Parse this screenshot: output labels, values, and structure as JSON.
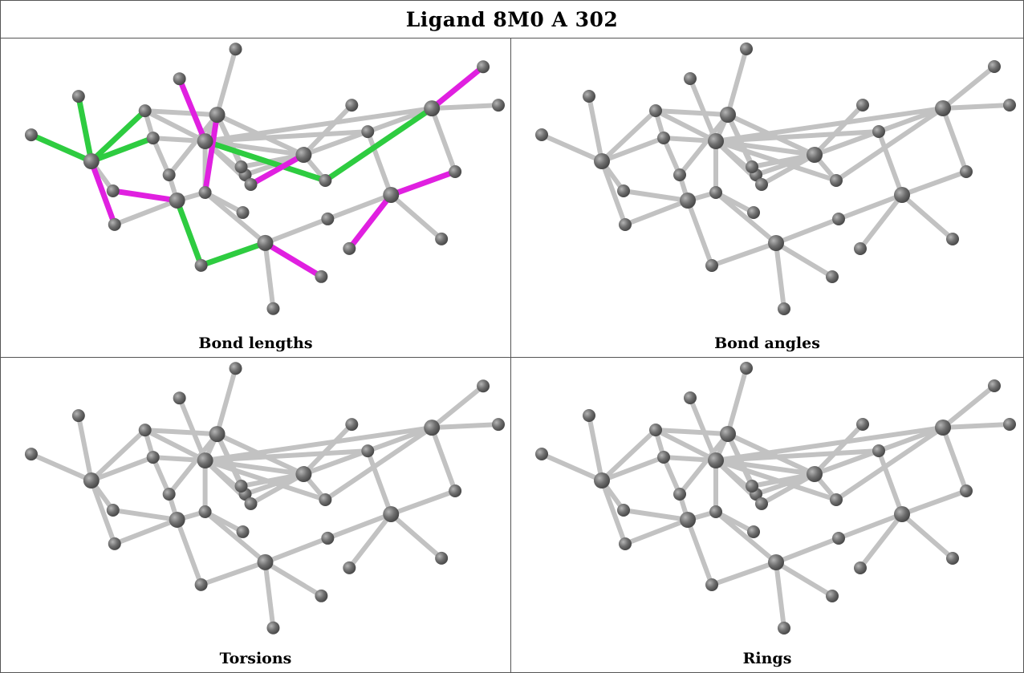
{
  "title": "Ligand 8M0 A 302",
  "panels": [
    {
      "caption": "Bond lengths"
    },
    {
      "caption": "Bond angles"
    },
    {
      "caption": "Torsions"
    },
    {
      "caption": "Rings"
    }
  ],
  "colors": {
    "bond": "#c2c2c2",
    "atom": "#707070",
    "green_bond": "#2ecc40",
    "magenta_bond": "#e020e0",
    "border": "#555555"
  }
}
